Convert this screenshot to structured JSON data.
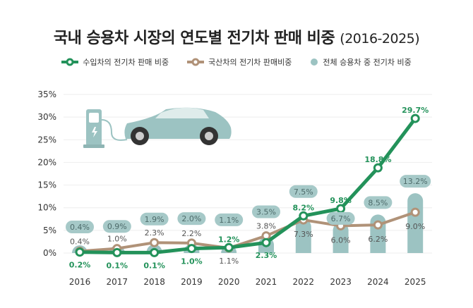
{
  "title": "국내 승용차 시장의 연도별 전기차 판매 비중",
  "title_years": "(2016-2025)",
  "colors": {
    "import": "#23925a",
    "domestic": "#b09278",
    "total": "#9cc3c2",
    "total_label_bg": "#a6c9c8"
  },
  "chart_data": {
    "type": "bar+line",
    "categories": [
      "2016",
      "2017",
      "2018",
      "2019",
      "2020",
      "2021",
      "2022",
      "2023",
      "2024",
      "2025"
    ],
    "ylim": [
      0,
      35
    ],
    "yticks": [
      "0%",
      "5%",
      "10%",
      "15%",
      "20%",
      "25%",
      "30%",
      "35%"
    ],
    "ytick_values": [
      0,
      5,
      10,
      15,
      20,
      25,
      30,
      35
    ],
    "grid": true,
    "legend_position": "top",
    "series": [
      {
        "name": "수입차의 전기차 판매 비중",
        "type": "line",
        "values": [
          0.2,
          0.1,
          0.1,
          1.0,
          1.2,
          2.3,
          8.2,
          9.8,
          18.8,
          29.7
        ],
        "labels": [
          "0.2%",
          "0.1%",
          "0.1%",
          "1.0%",
          "1.2%",
          "2.3%",
          "8.2%",
          "9.8%",
          "18.8%",
          "29.7%"
        ]
      },
      {
        "name": "국산차의 전기차 판매비중",
        "type": "line",
        "values": [
          0.4,
          1.0,
          2.3,
          2.2,
          1.1,
          3.8,
          7.3,
          6.0,
          6.2,
          9.0
        ],
        "labels": [
          "0.4%",
          "1.0%",
          "2.3%",
          "2.2%",
          "1.1%",
          "3.8%",
          "7.3%",
          "6.0%",
          "6.2%",
          "9.0%"
        ]
      },
      {
        "name": "전체 승용차 중 전기차 비중",
        "type": "bar",
        "values": [
          0.4,
          0.9,
          1.9,
          2.0,
          1.1,
          3.5,
          7.5,
          6.7,
          8.5,
          13.2
        ],
        "labels": [
          "0.4%",
          "0.9%",
          "1.9%",
          "2.0%",
          "1.1%",
          "3.5%",
          "7.5%",
          "6.7%",
          "8.5%",
          "13.2%"
        ]
      }
    ]
  }
}
